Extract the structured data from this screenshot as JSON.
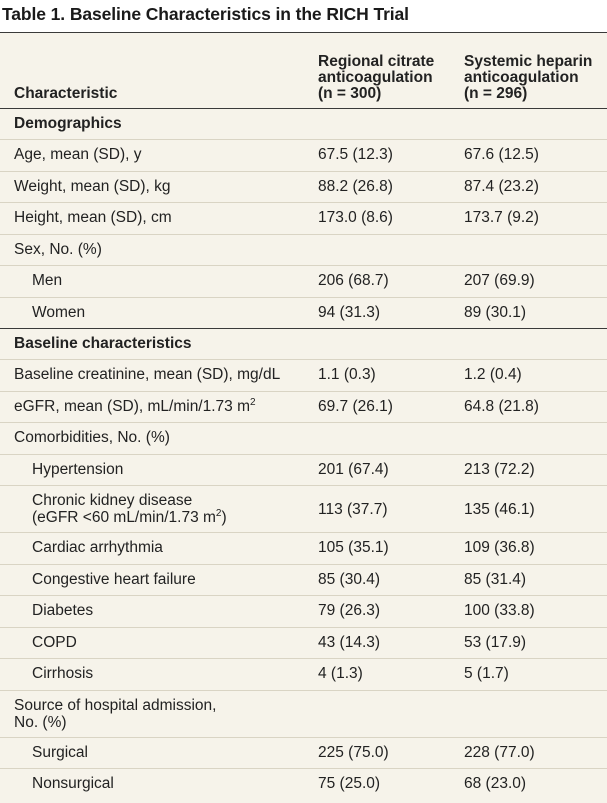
{
  "title": "Table 1. Baseline Characteristics in the RICH Trial",
  "header": {
    "characteristic": "Characteristic",
    "col2_line1": "Regional citrate",
    "col2_line2": "anticoagulation",
    "col2_line3": "(n = 300)",
    "col3_line1": "Systemic heparin",
    "col3_line2": "anticoagulation",
    "col3_line3": "(n = 296)"
  },
  "sections": {
    "demographics": "Demographics",
    "baseline": "Baseline characteristics"
  },
  "rows": {
    "age": {
      "label": "Age, mean (SD), y",
      "citrate": "67.5 (12.3)",
      "heparin": "67.6 (12.5)"
    },
    "weight": {
      "label": "Weight, mean (SD), kg",
      "citrate": "88.2 (26.8)",
      "heparin": "87.4 (23.2)"
    },
    "height": {
      "label": "Height, mean (SD), cm",
      "citrate": "173.0 (8.6)",
      "heparin": "173.7 (9.2)"
    },
    "sex": {
      "label": "Sex, No. (%)"
    },
    "men": {
      "label": "Men",
      "citrate": "206 (68.7)",
      "heparin": "207 (69.9)"
    },
    "women": {
      "label": "Women",
      "citrate": "94 (31.3)",
      "heparin": "89 (30.1)"
    },
    "creatinine": {
      "label": "Baseline creatinine, mean (SD), mg/dL",
      "citrate": "1.1 (0.3)",
      "heparin": "1.2 (0.4)"
    },
    "egfr": {
      "label": "eGFR, mean (SD), mL/min/1.73 m",
      "sup": "2",
      "citrate": "69.7 (26.1)",
      "heparin": "64.8 (21.8)"
    },
    "comorbidities": {
      "label": "Comorbidities, No. (%)"
    },
    "hypertension": {
      "label": "Hypertension",
      "citrate": "201 (67.4)",
      "heparin": "213 (72.2)"
    },
    "ckd": {
      "label": "Chronic kidney disease",
      "label2": "(eGFR <60 mL/min/1.73 m",
      "sup": "2",
      "label2_end": ")",
      "citrate": "113 (37.7)",
      "heparin": "135 (46.1)"
    },
    "arrhythmia": {
      "label": "Cardiac arrhythmia",
      "citrate": "105 (35.1)",
      "heparin": "109 (36.8)"
    },
    "chf": {
      "label": "Congestive heart failure",
      "citrate": "85 (30.4)",
      "heparin": "85 (31.4)"
    },
    "diabetes": {
      "label": "Diabetes",
      "citrate": "79 (26.3)",
      "heparin": "100 (33.8)"
    },
    "copd": {
      "label": "COPD",
      "citrate": "43 (14.3)",
      "heparin": "53 (17.9)"
    },
    "cirrhosis": {
      "label": "Cirrhosis",
      "citrate": "4 (1.3)",
      "heparin": "5 (1.7)"
    },
    "source": {
      "label": "Source of hospital admission,",
      "label2": "No. (%)"
    },
    "surgical": {
      "label": "Surgical",
      "citrate": "225 (75.0)",
      "heparin": "228 (77.0)"
    },
    "nonsurgical": {
      "label": "Nonsurgical",
      "citrate": "75 (25.0)",
      "heparin": "68 (23.0)"
    }
  }
}
